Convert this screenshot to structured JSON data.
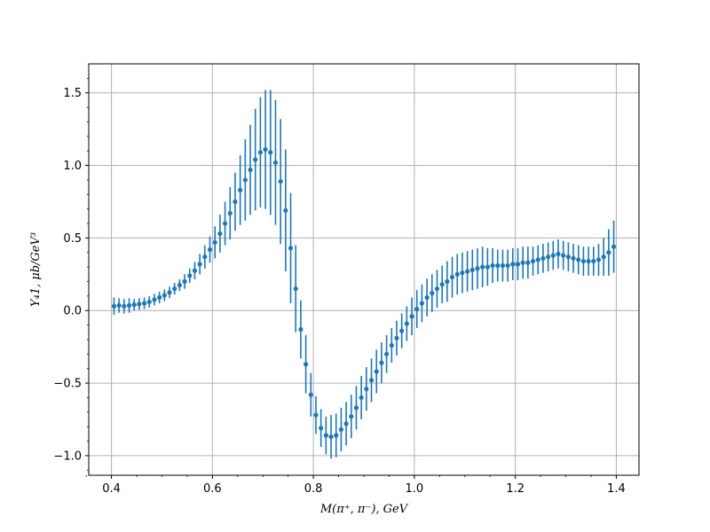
{
  "chart_data": {
    "type": "scatter",
    "xlabel": "M(π⁺, π⁻), GeV",
    "ylabel": "Y₄1, μb/GeV³",
    "xlim": [
      0.355,
      1.445
    ],
    "ylim": [
      -1.135,
      1.7
    ],
    "xticks": [
      0.4,
      0.6,
      0.8,
      1.0,
      1.2,
      1.4
    ],
    "xtick_labels": [
      "0.4",
      "0.6",
      "0.8",
      "1.0",
      "1.2",
      "1.4"
    ],
    "yticks": [
      -1.0,
      -0.5,
      0.0,
      0.5,
      1.0,
      1.5
    ],
    "ytick_labels": [
      "−1.0",
      "−0.5",
      "0.0",
      "0.5",
      "1.0",
      "1.5"
    ],
    "grid": true,
    "color": "#1f77b4",
    "series": [
      {
        "x": [
          0.405,
          0.415,
          0.425,
          0.435,
          0.445,
          0.455,
          0.465,
          0.475,
          0.485,
          0.495,
          0.505,
          0.515,
          0.525,
          0.535,
          0.545,
          0.555,
          0.565,
          0.575,
          0.585,
          0.595,
          0.605,
          0.615,
          0.625,
          0.635,
          0.645,
          0.655,
          0.665,
          0.675,
          0.685,
          0.695,
          0.705,
          0.715,
          0.725,
          0.735,
          0.745,
          0.755,
          0.765,
          0.775,
          0.785,
          0.795,
          0.805,
          0.815,
          0.825,
          0.835,
          0.845,
          0.855,
          0.865,
          0.875,
          0.885,
          0.895,
          0.905,
          0.915,
          0.925,
          0.935,
          0.945,
          0.955,
          0.965,
          0.975,
          0.985,
          0.995,
          1.005,
          1.015,
          1.025,
          1.035,
          1.045,
          1.055,
          1.065,
          1.075,
          1.085,
          1.095,
          1.105,
          1.115,
          1.125,
          1.135,
          1.145,
          1.155,
          1.165,
          1.175,
          1.185,
          1.195,
          1.205,
          1.215,
          1.225,
          1.235,
          1.245,
          1.255,
          1.265,
          1.275,
          1.285,
          1.295,
          1.305,
          1.315,
          1.325,
          1.335,
          1.345,
          1.355,
          1.365,
          1.375,
          1.385,
          1.395
        ],
        "y": [
          0.03,
          0.035,
          0.03,
          0.035,
          0.04,
          0.045,
          0.05,
          0.06,
          0.075,
          0.09,
          0.105,
          0.125,
          0.15,
          0.175,
          0.2,
          0.24,
          0.275,
          0.32,
          0.37,
          0.42,
          0.47,
          0.53,
          0.6,
          0.67,
          0.75,
          0.83,
          0.9,
          0.97,
          1.04,
          1.09,
          1.11,
          1.09,
          1.02,
          0.89,
          0.69,
          0.43,
          0.15,
          -0.13,
          -0.37,
          -0.58,
          -0.72,
          -0.81,
          -0.86,
          -0.87,
          -0.86,
          -0.82,
          -0.78,
          -0.73,
          -0.67,
          -0.6,
          -0.54,
          -0.48,
          -0.42,
          -0.36,
          -0.3,
          -0.24,
          -0.19,
          -0.14,
          -0.09,
          -0.04,
          0.01,
          0.05,
          0.09,
          0.12,
          0.15,
          0.18,
          0.2,
          0.23,
          0.25,
          0.26,
          0.27,
          0.28,
          0.29,
          0.3,
          0.3,
          0.31,
          0.31,
          0.31,
          0.31,
          0.32,
          0.32,
          0.33,
          0.33,
          0.34,
          0.35,
          0.36,
          0.37,
          0.38,
          0.39,
          0.38,
          0.37,
          0.36,
          0.35,
          0.34,
          0.34,
          0.34,
          0.35,
          0.37,
          0.4,
          0.44
        ],
        "yerr": [
          0.06,
          0.05,
          0.05,
          0.05,
          0.04,
          0.04,
          0.04,
          0.04,
          0.04,
          0.04,
          0.04,
          0.04,
          0.04,
          0.04,
          0.05,
          0.05,
          0.06,
          0.07,
          0.08,
          0.09,
          0.11,
          0.13,
          0.15,
          0.18,
          0.2,
          0.24,
          0.28,
          0.31,
          0.35,
          0.38,
          0.41,
          0.43,
          0.43,
          0.43,
          0.42,
          0.38,
          0.3,
          0.2,
          0.2,
          0.15,
          0.13,
          0.13,
          0.13,
          0.15,
          0.15,
          0.15,
          0.15,
          0.15,
          0.15,
          0.15,
          0.15,
          0.15,
          0.15,
          0.14,
          0.13,
          0.12,
          0.12,
          0.12,
          0.12,
          0.13,
          0.13,
          0.13,
          0.13,
          0.13,
          0.13,
          0.13,
          0.14,
          0.14,
          0.14,
          0.14,
          0.14,
          0.14,
          0.14,
          0.14,
          0.13,
          0.12,
          0.11,
          0.11,
          0.11,
          0.11,
          0.11,
          0.11,
          0.11,
          0.1,
          0.1,
          0.1,
          0.1,
          0.1,
          0.1,
          0.1,
          0.1,
          0.1,
          0.1,
          0.1,
          0.1,
          0.1,
          0.11,
          0.13,
          0.16,
          0.18
        ]
      }
    ]
  }
}
